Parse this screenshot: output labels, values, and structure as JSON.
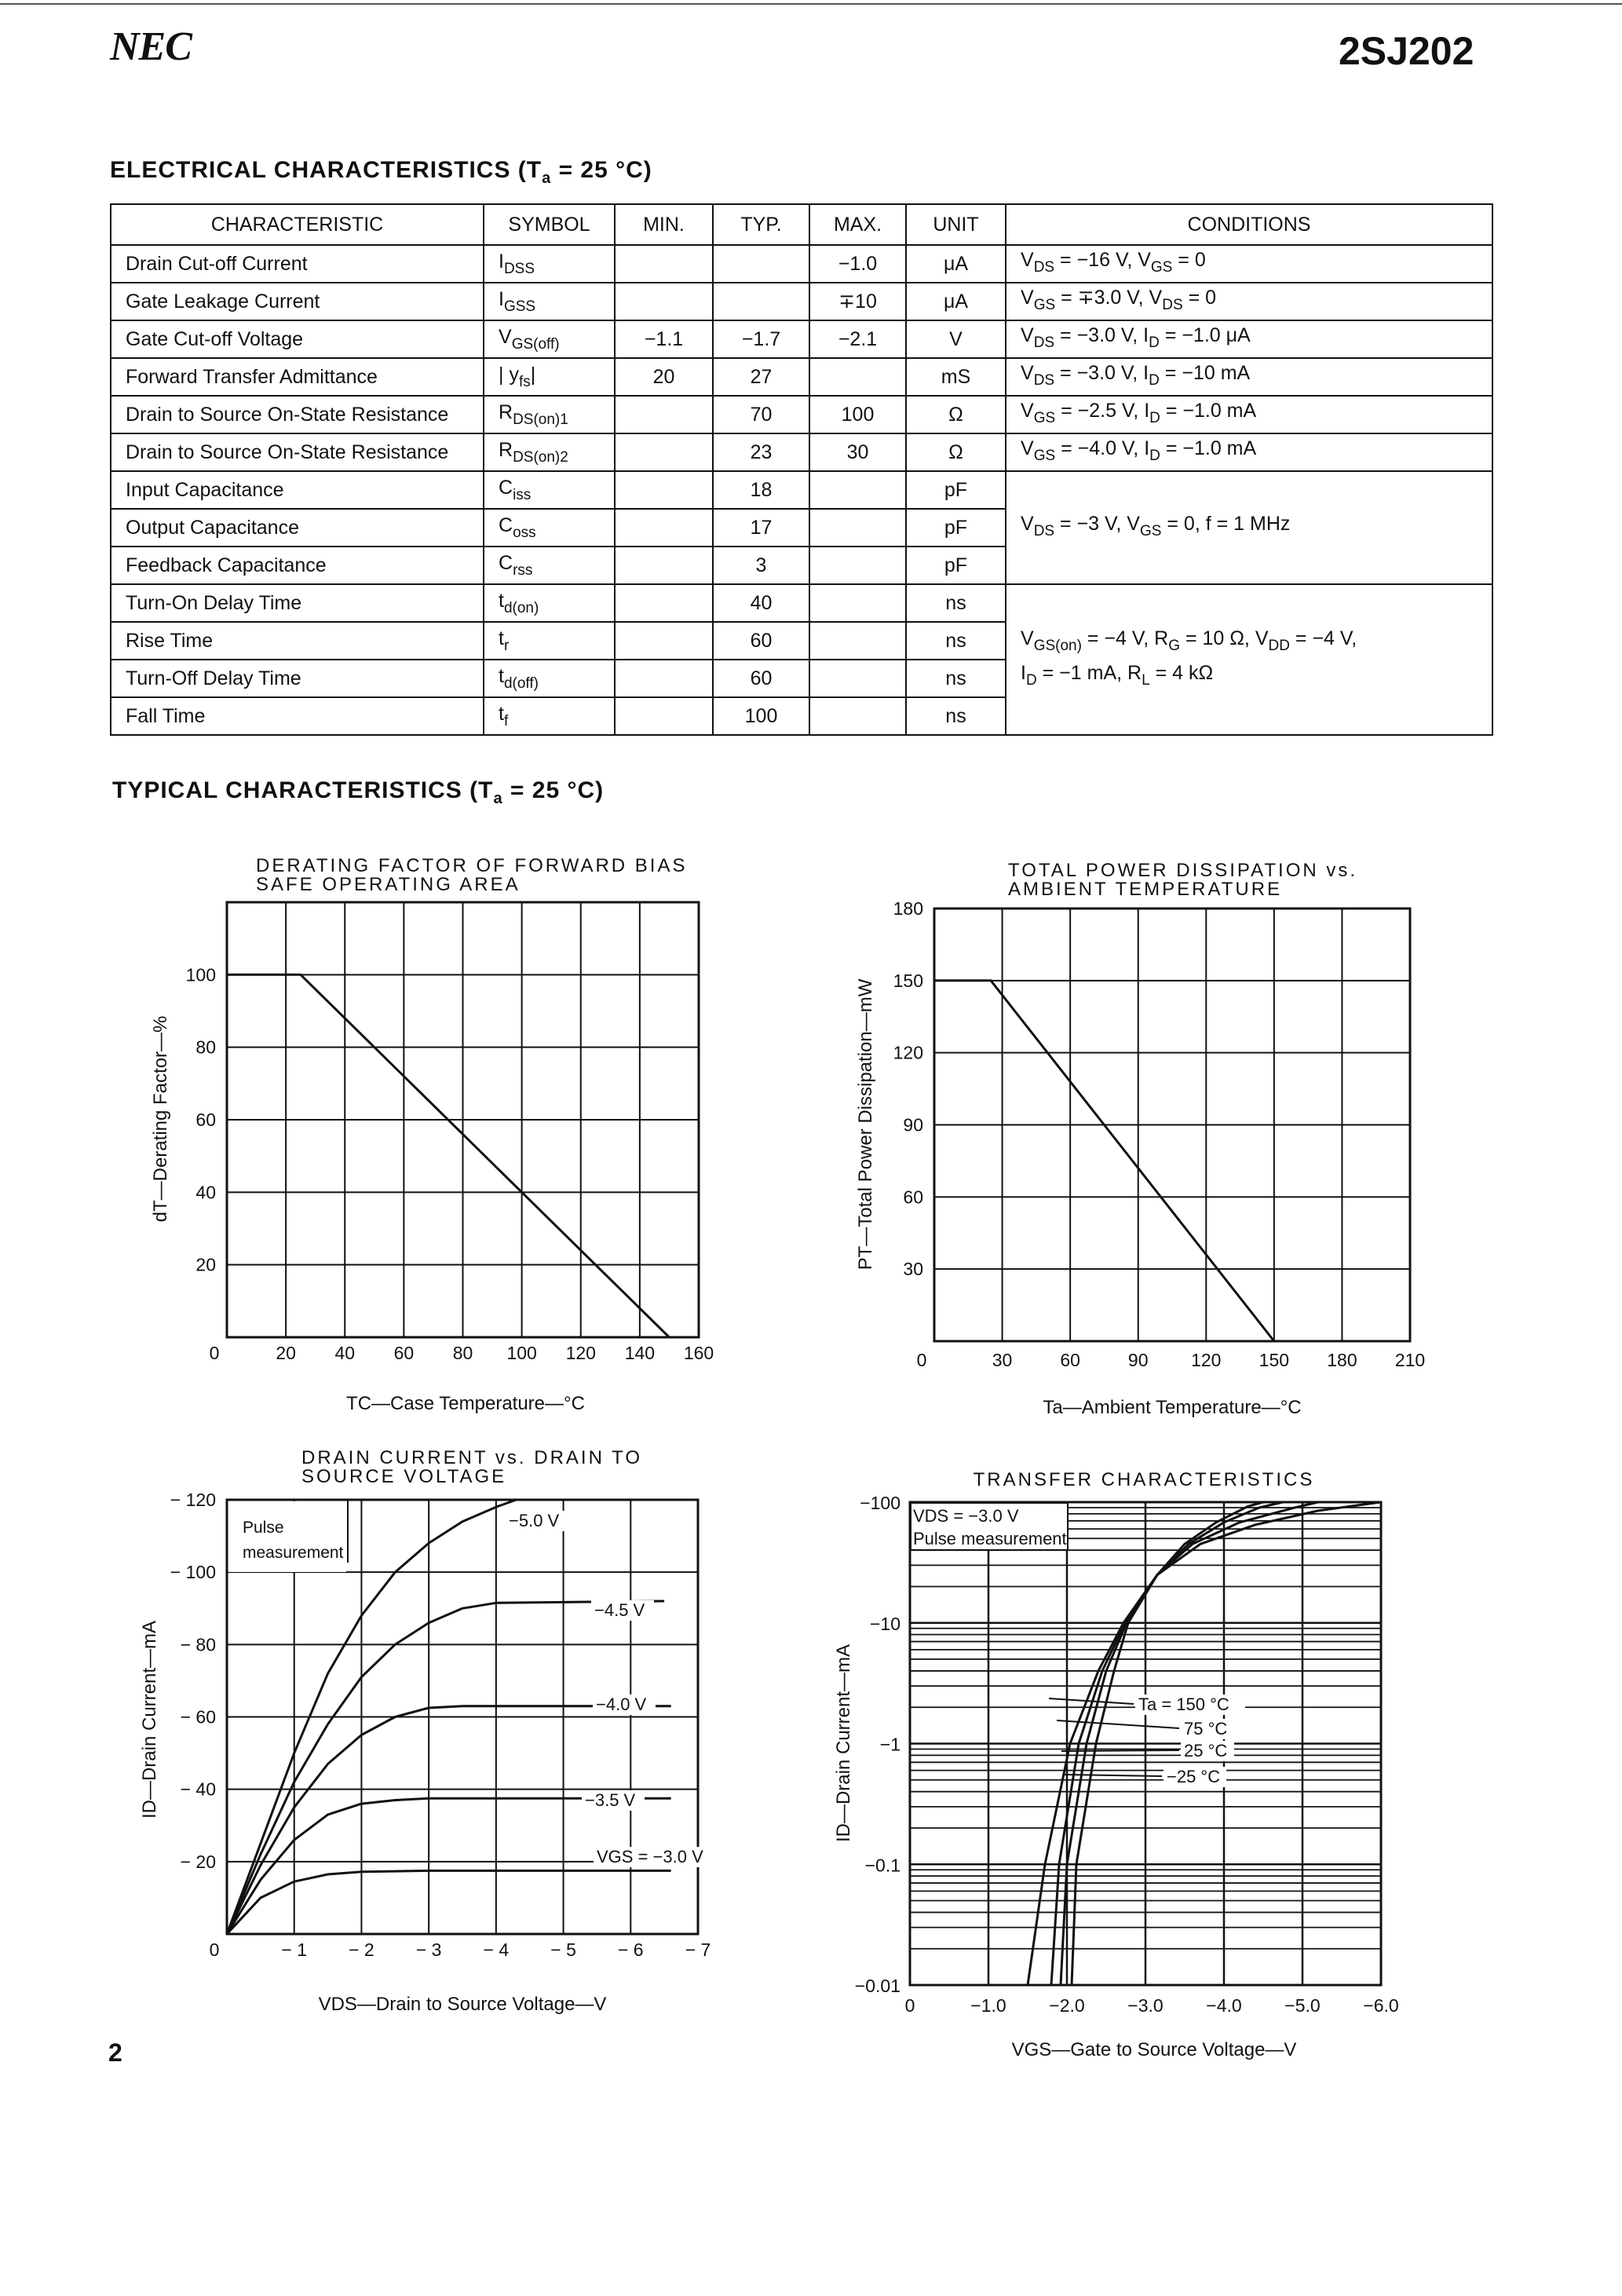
{
  "header": {
    "logo": "NEC",
    "part_number": "2SJ202"
  },
  "electrical": {
    "title": "ELECTRICAL CHARACTERISTICS (T",
    "title_sub": "a",
    "title_end": " = 25 °C)",
    "columns": [
      "CHARACTERISTIC",
      "SYMBOL",
      "MIN.",
      "TYP.",
      "MAX.",
      "UNIT",
      "CONDITIONS"
    ],
    "rows": [
      {
        "name": "Drain Cut-off Current",
        "sym": [
          "I",
          "DSS",
          ""
        ],
        "min": "",
        "typ": "",
        "max": "−1.0",
        "unit": "μA",
        "rowspan": 1,
        "cond": [
          [
            [
              "V",
              0
            ],
            [
              "DS",
              1
            ],
            [
              " = −16 V, V",
              0
            ],
            [
              "GS",
              1
            ],
            [
              " = 0",
              0
            ]
          ]
        ]
      },
      {
        "name": "Gate Leakage Current",
        "sym": [
          "I",
          "GSS",
          ""
        ],
        "min": "",
        "typ": "",
        "max": "∓10",
        "unit": "μA",
        "rowspan": 1,
        "cond": [
          [
            [
              "V",
              0
            ],
            [
              "GS",
              1
            ],
            [
              " = ∓3.0 V, V",
              0
            ],
            [
              "DS",
              1
            ],
            [
              " = 0",
              0
            ]
          ]
        ]
      },
      {
        "name": "Gate Cut-off Voltage",
        "sym": [
          "V",
          "GS(off)",
          ""
        ],
        "min": "−1.1",
        "typ": "−1.7",
        "max": "−2.1",
        "unit": "V",
        "rowspan": 1,
        "cond": [
          [
            [
              "V",
              0
            ],
            [
              "DS",
              1
            ],
            [
              " = −3.0 V, I",
              0
            ],
            [
              "D",
              1
            ],
            [
              " = −1.0 μA",
              0
            ]
          ]
        ]
      },
      {
        "name": "Forward Transfer Admittance",
        "sym": [
          "| y",
          "fs",
          "|"
        ],
        "min": "20",
        "typ": "27",
        "max": "",
        "unit": "mS",
        "rowspan": 1,
        "cond": [
          [
            [
              "V",
              0
            ],
            [
              "DS",
              1
            ],
            [
              " = −3.0 V, I",
              0
            ],
            [
              "D",
              1
            ],
            [
              " = −10 mA",
              0
            ]
          ]
        ]
      },
      {
        "name": "Drain to Source On-State Resistance",
        "sym": [
          "R",
          "DS(on)1",
          ""
        ],
        "min": "",
        "typ": "70",
        "max": "100",
        "unit": "Ω",
        "rowspan": 1,
        "cond": [
          [
            [
              "V",
              0
            ],
            [
              "GS",
              1
            ],
            [
              " = −2.5 V, I",
              0
            ],
            [
              "D",
              1
            ],
            [
              " = −1.0 mA",
              0
            ]
          ]
        ]
      },
      {
        "name": "Drain to Source On-State Resistance",
        "sym": [
          "R",
          "DS(on)2",
          ""
        ],
        "min": "",
        "typ": "23",
        "max": "30",
        "unit": "Ω",
        "rowspan": 1,
        "cond": [
          [
            [
              "V",
              0
            ],
            [
              "GS",
              1
            ],
            [
              " = −4.0 V, I",
              0
            ],
            [
              "D",
              1
            ],
            [
              " = −1.0 mA",
              0
            ]
          ]
        ]
      },
      {
        "name": "Input Capacitance",
        "sym": [
          "C",
          "iss",
          ""
        ],
        "min": "",
        "typ": "18",
        "max": "",
        "unit": "pF",
        "rowspan": 3,
        "cond": [
          [
            [
              "V",
              0
            ],
            [
              "DS",
              1
            ],
            [
              " = −3 V, V",
              0
            ],
            [
              "GS",
              1
            ],
            [
              " = 0, f = 1 MHz",
              0
            ]
          ]
        ]
      },
      {
        "name": "Output Capacitance",
        "sym": [
          "C",
          "oss",
          ""
        ],
        "min": "",
        "typ": "17",
        "max": "",
        "unit": "pF"
      },
      {
        "name": "Feedback Capacitance",
        "sym": [
          "C",
          "rss",
          ""
        ],
        "min": "",
        "typ": "3",
        "max": "",
        "unit": "pF"
      },
      {
        "name": "Turn-On Delay Time",
        "sym": [
          "t",
          "d(on)",
          ""
        ],
        "min": "",
        "typ": "40",
        "max": "",
        "unit": "ns",
        "rowspan": 4,
        "cond": [
          [
            [
              "V",
              0
            ],
            [
              "GS(on)",
              1
            ],
            [
              " = −4 V, R",
              0
            ],
            [
              "G",
              1
            ],
            [
              " = 10 Ω, V",
              0
            ],
            [
              "DD",
              1
            ],
            [
              " = −4 V,",
              0
            ]
          ],
          [
            [
              "I",
              0
            ],
            [
              "D",
              1
            ],
            [
              " = −1 mA, R",
              0
            ],
            [
              "L",
              1
            ],
            [
              " = 4 kΩ",
              0
            ]
          ]
        ]
      },
      {
        "name": "Rise Time",
        "sym": [
          "t",
          "r",
          ""
        ],
        "min": "",
        "typ": "60",
        "max": "",
        "unit": "ns"
      },
      {
        "name": "Turn-Off Delay Time",
        "sym": [
          "t",
          "d(off)",
          ""
        ],
        "min": "",
        "typ": "60",
        "max": "",
        "unit": "ns"
      },
      {
        "name": "Fall Time",
        "sym": [
          "t",
          "f",
          ""
        ],
        "min": "",
        "typ": "100",
        "max": "",
        "unit": "ns"
      }
    ]
  },
  "typical": {
    "title": "TYPICAL CHARACTERISTICS (T",
    "title_sub": "a",
    "title_end": " = 25 °C)"
  },
  "page_number": "2",
  "chart_data": [
    {
      "type": "line",
      "title": [
        "DERATING FACTOR OF FORWARD BIAS",
        "SAFE OPERATING AREA"
      ],
      "xlabel": "TC—Case Temperature—°C",
      "ylabel": "dT—Derating Factor—%",
      "xlim": [
        0,
        160
      ],
      "ylim": [
        0,
        120
      ],
      "grid": true,
      "xticks": [
        0,
        20,
        40,
        60,
        80,
        100,
        120,
        140,
        160
      ],
      "yticks": [
        20,
        40,
        60,
        80,
        100
      ],
      "series": [
        {
          "points": [
            [
              0,
              100
            ],
            [
              25,
              100
            ],
            [
              150,
              0
            ]
          ]
        }
      ]
    },
    {
      "type": "line",
      "title": [
        "TOTAL POWER DISSIPATION vs.",
        "AMBIENT TEMPERATURE"
      ],
      "xlabel": "Ta—Ambient Temperature—°C",
      "ylabel": "PT—Total Power Dissipation—mW",
      "xlim": [
        0,
        210
      ],
      "ylim": [
        0,
        180
      ],
      "grid": true,
      "xticks": [
        0,
        30,
        60,
        90,
        120,
        150,
        180,
        210
      ],
      "yticks": [
        30,
        60,
        90,
        120,
        150,
        180
      ],
      "series": [
        {
          "points": [
            [
              0,
              150
            ],
            [
              25,
              150
            ],
            [
              150,
              0
            ]
          ]
        }
      ]
    },
    {
      "type": "line",
      "title": [
        "DRAIN CURRENT vs. DRAIN TO",
        "SOURCE VOLTAGE"
      ],
      "xlabel": "VDS—Drain to Source Voltage—V",
      "ylabel": "ID—Drain Current—mA",
      "xlim": [
        0,
        -7
      ],
      "ylim": [
        0,
        -120
      ],
      "grid": true,
      "xticks": [
        0,
        -1,
        -2,
        -3,
        -4,
        -5,
        -6,
        -7
      ],
      "yticks": [
        -20,
        -40,
        -60,
        -80,
        -100,
        -120
      ],
      "annotations": [
        "Pulse",
        "measurement"
      ],
      "series": [
        {
          "name": "VGS = −3.0 V",
          "points": [
            [
              0,
              0
            ],
            [
              -0.5,
              -10
            ],
            [
              -1,
              -14.5
            ],
            [
              -1.5,
              -16.5
            ],
            [
              -2,
              -17.2
            ],
            [
              -3,
              -17.5
            ],
            [
              -6.6,
              -17.5
            ]
          ]
        },
        {
          "name": "−3.5 V",
          "points": [
            [
              0,
              0
            ],
            [
              -0.5,
              -15
            ],
            [
              -1,
              -26
            ],
            [
              -1.5,
              -33
            ],
            [
              -2,
              -36
            ],
            [
              -2.5,
              -37
            ],
            [
              -3,
              -37.5
            ],
            [
              -6.6,
              -37.5
            ]
          ]
        },
        {
          "name": "−4.0 V",
          "points": [
            [
              0,
              0
            ],
            [
              -0.5,
              -19
            ],
            [
              -1,
              -35
            ],
            [
              -1.5,
              -47
            ],
            [
              -2,
              -55
            ],
            [
              -2.5,
              -60
            ],
            [
              -3,
              -62.5
            ],
            [
              -3.5,
              -63
            ],
            [
              -6.6,
              -63
            ]
          ]
        },
        {
          "name": "−4.5 V",
          "points": [
            [
              0,
              0
            ],
            [
              -0.5,
              -22
            ],
            [
              -1,
              -42
            ],
            [
              -1.5,
              -58
            ],
            [
              -2,
              -71
            ],
            [
              -2.5,
              -80
            ],
            [
              -3,
              -86
            ],
            [
              -3.5,
              -90
            ],
            [
              -4,
              -91.5
            ],
            [
              -6.5,
              -92
            ]
          ]
        },
        {
          "name": "−5.0 V",
          "points": [
            [
              0,
              0
            ],
            [
              -0.5,
              -25
            ],
            [
              -1,
              -50
            ],
            [
              -1.5,
              -72
            ],
            [
              -2,
              -88
            ],
            [
              -2.5,
              -100
            ],
            [
              -3,
              -108
            ],
            [
              -3.5,
              -114
            ],
            [
              -4,
              -118
            ],
            [
              -4.3,
              -120
            ]
          ]
        }
      ]
    },
    {
      "type": "line",
      "title": [
        "TRANSFER CHARACTERISTICS"
      ],
      "xlabel": "VGS—Gate to Source Voltage—V",
      "ylabel": "ID—Drain Current—mA",
      "xlim": [
        0,
        -6
      ],
      "ylim": [
        -0.01,
        -100
      ],
      "yscale": "log",
      "grid": true,
      "xticks": [
        "0",
        "−1.0",
        "−2.0",
        "−3.0",
        "−4.0",
        "−5.0",
        "−6.0"
      ],
      "yticks": [
        "−0.01",
        "−0.1",
        "−1",
        "−10",
        "−100"
      ],
      "annotations": [
        "VDS = −3.0 V",
        "Pulse measurement"
      ],
      "series": [
        {
          "name": "Ta = 150 °C",
          "points": [
            [
              -1.5,
              0.01
            ],
            [
              -1.72,
              0.1
            ],
            [
              -2.04,
              1
            ],
            [
              -2.4,
              4
            ],
            [
              -2.72,
              10
            ],
            [
              -3.15,
              25
            ],
            [
              -3.7,
              45
            ],
            [
              -4.4,
              65
            ],
            [
              -5.2,
              85
            ],
            [
              -6.0,
              100
            ]
          ]
        },
        {
          "name": "75 °C",
          "points": [
            [
              -1.8,
              0.01
            ],
            [
              -1.9,
              0.1
            ],
            [
              -2.15,
              1
            ],
            [
              -2.45,
              4
            ],
            [
              -2.74,
              10
            ],
            [
              -3.15,
              25
            ],
            [
              -3.6,
              45
            ],
            [
              -4.2,
              68
            ],
            [
              -4.9,
              90
            ],
            [
              -5.2,
              100
            ]
          ]
        },
        {
          "name": "25 °C",
          "points": [
            [
              -1.92,
              0.01
            ],
            [
              -2.0,
              0.1
            ],
            [
              -2.25,
              1
            ],
            [
              -2.5,
              4
            ],
            [
              -2.76,
              10
            ],
            [
              -3.15,
              25
            ],
            [
              -3.55,
              45
            ],
            [
              -4.0,
              68
            ],
            [
              -4.45,
              90
            ],
            [
              -4.75,
              100
            ]
          ]
        },
        {
          "name": "−25 °C",
          "points": [
            [
              -2.06,
              0.01
            ],
            [
              -2.12,
              0.1
            ],
            [
              -2.37,
              1
            ],
            [
              -2.6,
              4
            ],
            [
              -2.78,
              10
            ],
            [
              -3.15,
              25
            ],
            [
              -3.5,
              45
            ],
            [
              -3.9,
              68
            ],
            [
              -4.3,
              92
            ],
            [
              -4.5,
              100
            ]
          ]
        }
      ]
    }
  ]
}
